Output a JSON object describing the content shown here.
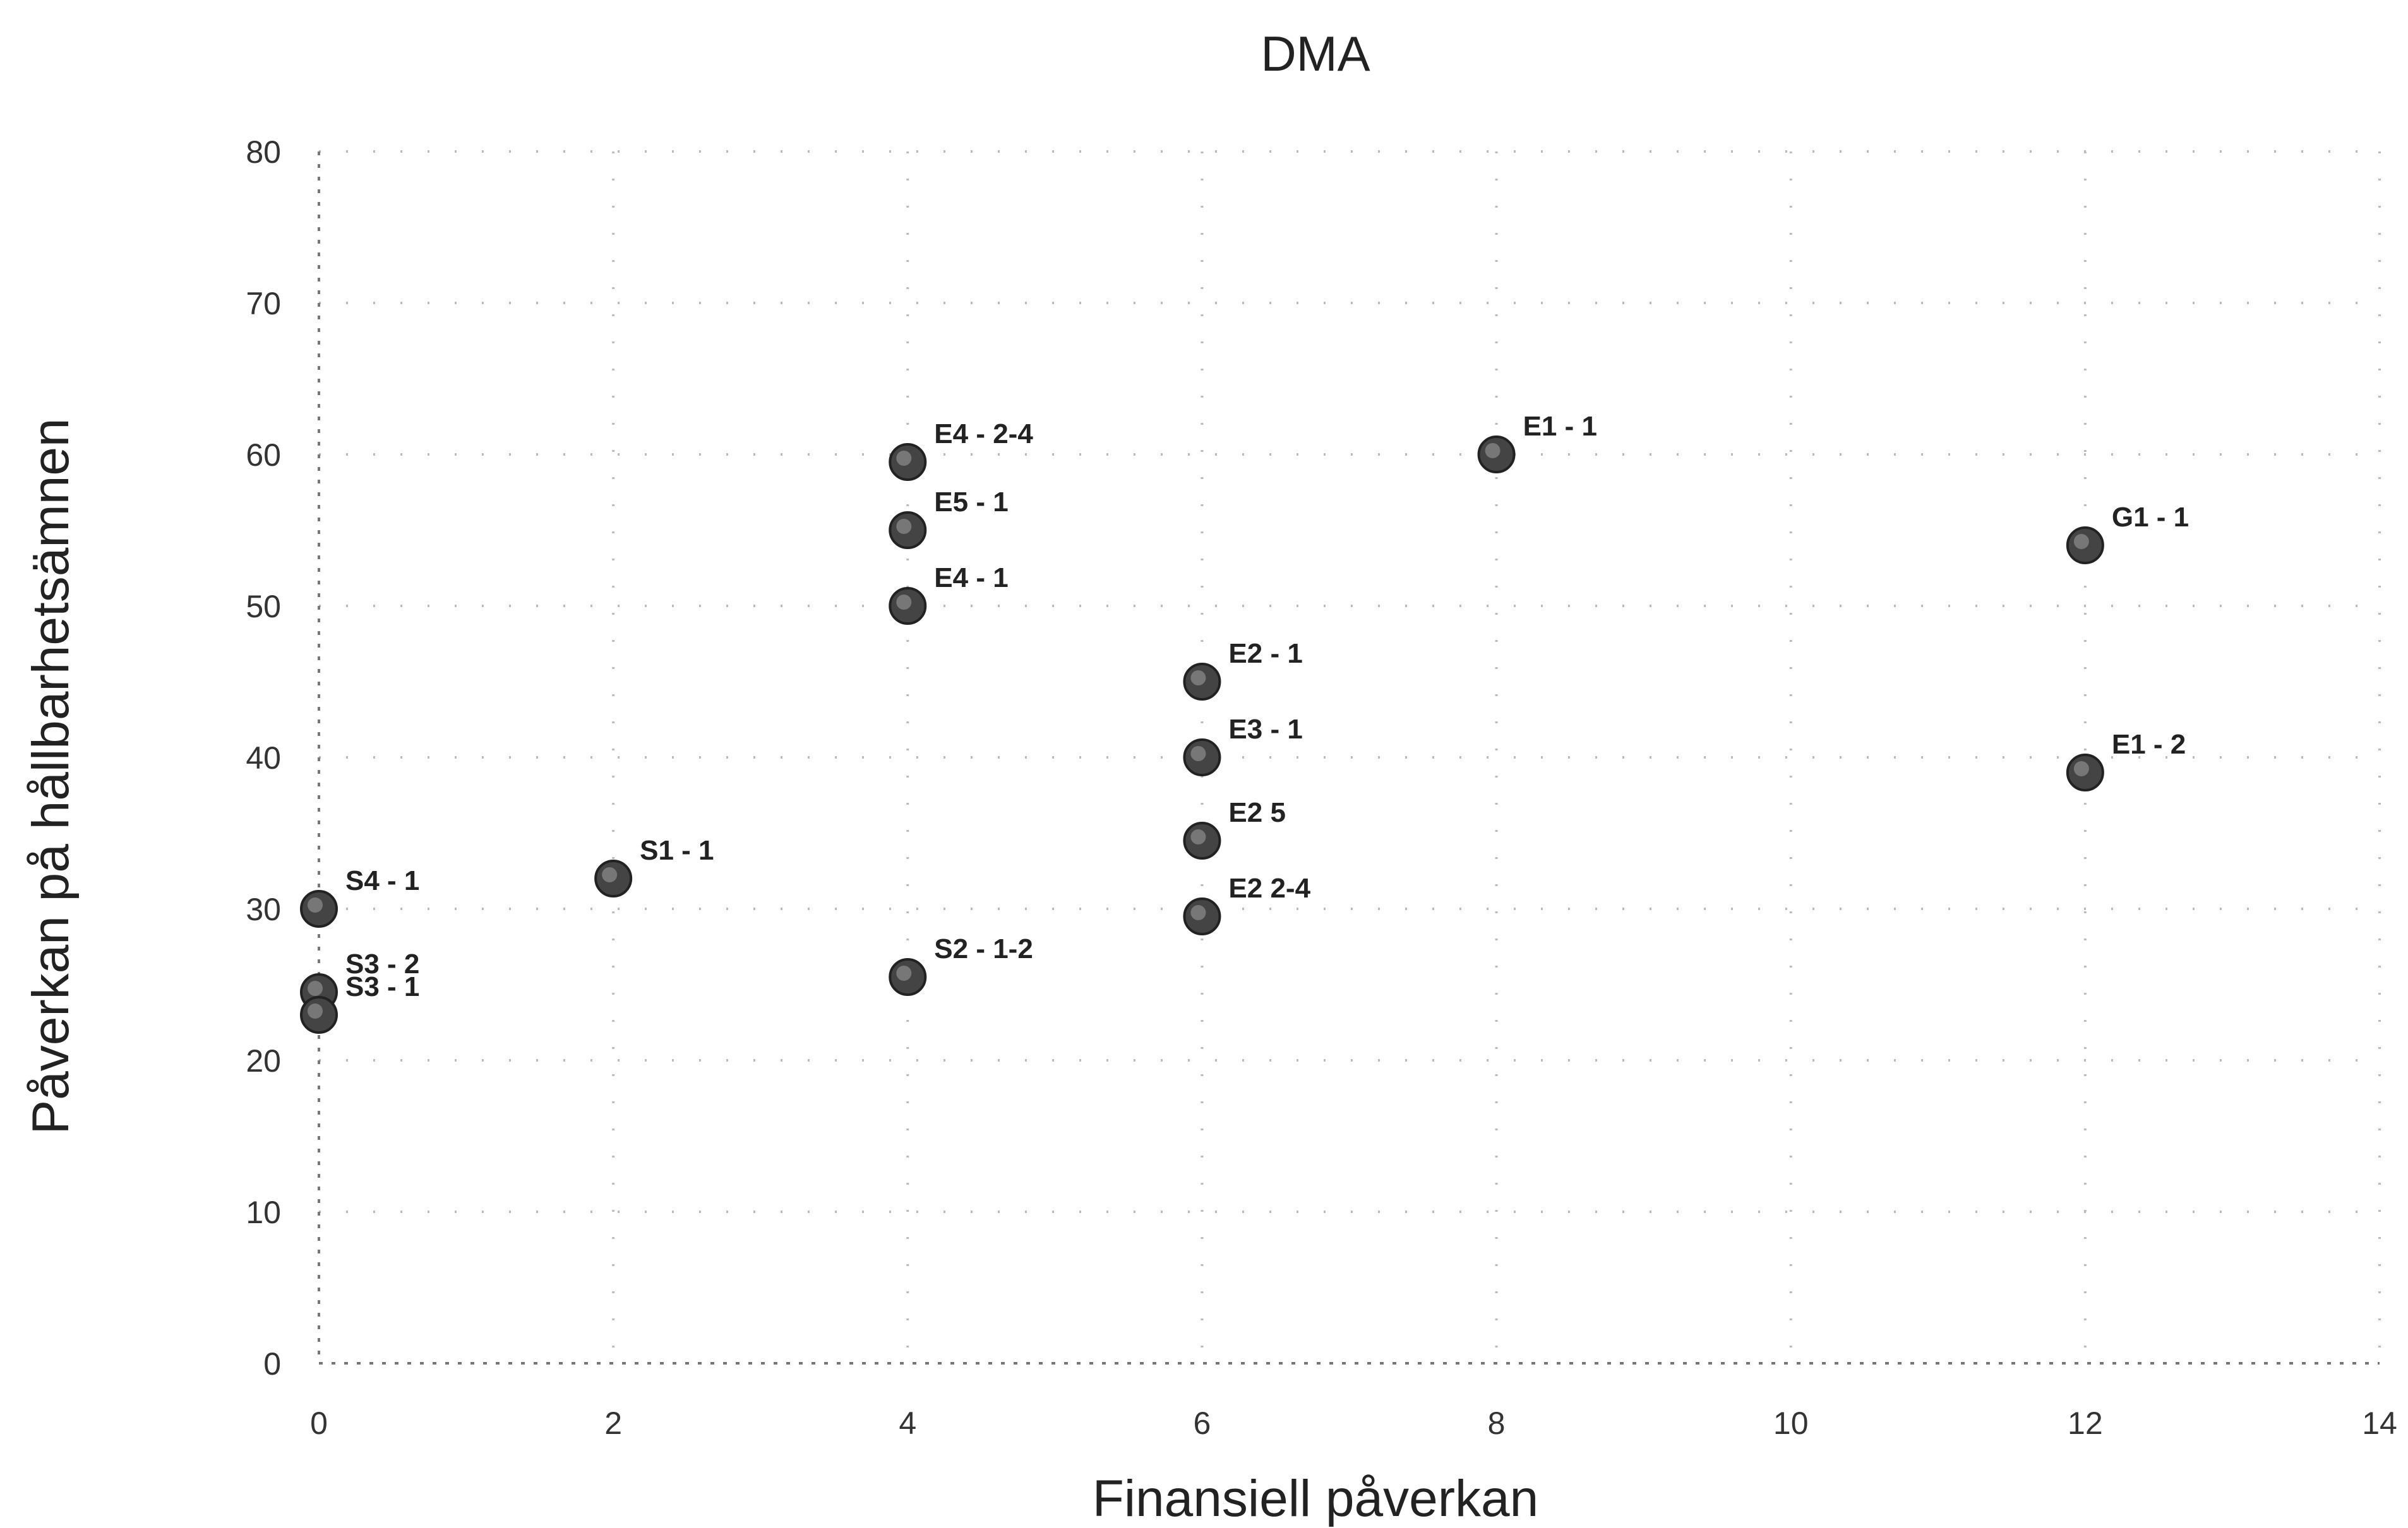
{
  "chart_data": {
    "type": "scatter",
    "title": "DMA",
    "xlabel": "Finansiell påverkan",
    "ylabel": "Påverkan på hållbarhetsämnen",
    "xlim": [
      0,
      14
    ],
    "ylim": [
      0,
      80
    ],
    "xticks": [
      "0",
      "2",
      "4",
      "6",
      "8",
      "10",
      "12",
      "14"
    ],
    "yticks": [
      "0",
      "10",
      "20",
      "30",
      "40",
      "50",
      "60",
      "70",
      "80"
    ],
    "grid": true,
    "legend": "none",
    "marker_color": "#444444",
    "points": [
      {
        "label": "E4 - 2-4",
        "x": 4,
        "y": 59.5
      },
      {
        "label": "E5 - 1",
        "x": 4,
        "y": 55
      },
      {
        "label": "E4 - 1",
        "x": 4,
        "y": 50
      },
      {
        "label": "E1 - 1",
        "x": 8,
        "y": 60
      },
      {
        "label": "G1 - 1",
        "x": 12,
        "y": 54
      },
      {
        "label": "E2 - 1",
        "x": 6,
        "y": 45
      },
      {
        "label": "E3 - 1",
        "x": 6,
        "y": 40
      },
      {
        "label": "E2 5",
        "x": 6,
        "y": 34.5
      },
      {
        "label": "E2 2-4",
        "x": 6,
        "y": 29.5
      },
      {
        "label": "E1 - 2",
        "x": 12,
        "y": 39
      },
      {
        "label": "S1 - 1",
        "x": 2,
        "y": 32
      },
      {
        "label": "S4 - 1",
        "x": 0,
        "y": 30
      },
      {
        "label": "S3 - 2",
        "x": 0,
        "y": 24.5
      },
      {
        "label": "S3 - 1",
        "x": 0,
        "y": 23
      },
      {
        "label": "S2 - 1-2",
        "x": 4,
        "y": 25.5
      }
    ]
  }
}
